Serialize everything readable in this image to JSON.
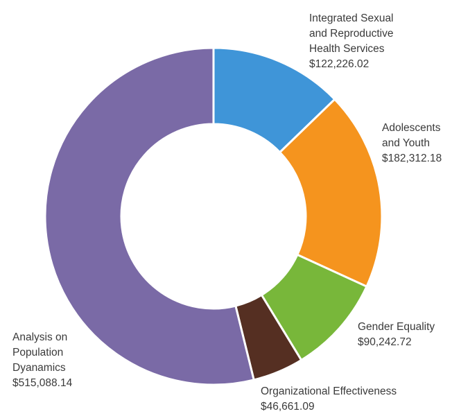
{
  "chart_data": {
    "type": "pie",
    "variant": "donut",
    "slices": [
      {
        "label_lines": [
          "Integrated Sexual",
          "and Reproductive",
          "Health Services"
        ],
        "value": 122226.02,
        "value_text": "$122,226.02",
        "color": "#3f95d8"
      },
      {
        "label_lines": [
          "Adolescents",
          "and Youth"
        ],
        "value": 182312.18,
        "value_text": "$182,312.18",
        "color": "#f5941e"
      },
      {
        "label_lines": [
          "Gender Equality"
        ],
        "value": 90242.72,
        "value_text": "$90,242.72",
        "color": "#78b73a"
      },
      {
        "label_lines": [
          "Organizational Effectiveness"
        ],
        "value": 46661.09,
        "value_text": "$46,661.09",
        "color": "#552f22"
      },
      {
        "label_lines": [
          "Analysis on",
          "Population",
          "Dyanamics"
        ],
        "value": 515088.14,
        "value_text": "$515,088.14",
        "color": "#7a6aa6"
      }
    ]
  }
}
